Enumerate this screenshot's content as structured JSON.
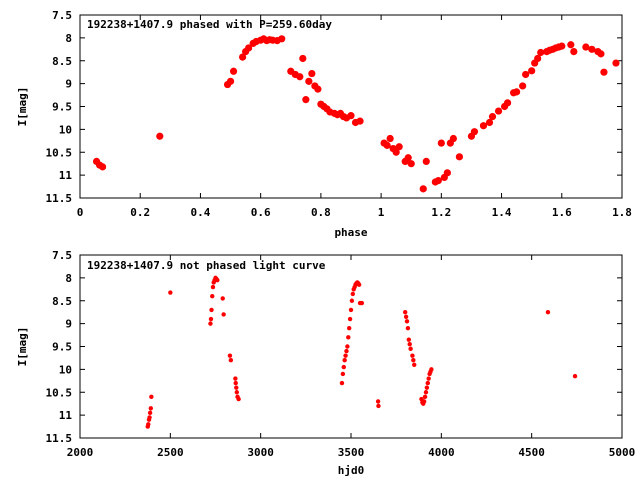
{
  "chart_data": [
    {
      "type": "scatter",
      "title": "192238+1407.9 phased with P=259.60day",
      "xlabel": "phase",
      "ylabel": "I[mag]",
      "xlim": [
        0,
        1.8
      ],
      "ylim": [
        11.5,
        7.5
      ],
      "y_inverted": true,
      "x_ticks": [
        "0",
        "0.2",
        "0.4",
        "0.6",
        "0.8",
        "1",
        "1.2",
        "1.4",
        "1.6",
        "1.8"
      ],
      "y_ticks": [
        "7.5",
        "8",
        "8.5",
        "9",
        "9.5",
        "10",
        "10.5",
        "11",
        "11.5"
      ],
      "color": "#ff0000",
      "series": [
        {
          "x": [
            0.055,
            0.065,
            0.075,
            0.265,
            0.49,
            0.5,
            0.51,
            0.54,
            0.55,
            0.56,
            0.575,
            0.585,
            0.6,
            0.61,
            0.62,
            0.63,
            0.64,
            0.655,
            0.67,
            0.7,
            0.715,
            0.73,
            0.74,
            0.75,
            0.76,
            0.77,
            0.78,
            0.79,
            0.8,
            0.81,
            0.82,
            0.83,
            0.845,
            0.855,
            0.865,
            0.875,
            0.885,
            0.9,
            0.915,
            0.93,
            1.01,
            1.02,
            1.03,
            1.04,
            1.05,
            1.06,
            1.08,
            1.09,
            1.1,
            1.14,
            1.15,
            1.18,
            1.19,
            1.2,
            1.21,
            1.22,
            1.23,
            1.24,
            1.26,
            1.3,
            1.31,
            1.34,
            1.36,
            1.37,
            1.39,
            1.41,
            1.42,
            1.44,
            1.45,
            1.47,
            1.48,
            1.5,
            1.51,
            1.52,
            1.53,
            1.55,
            1.56,
            1.57,
            1.58,
            1.59,
            1.6,
            1.63,
            1.64,
            1.68,
            1.7,
            1.72,
            1.73,
            1.74,
            1.78
          ],
          "y": [
            10.7,
            10.78,
            10.82,
            10.15,
            9.02,
            8.95,
            8.73,
            8.42,
            8.3,
            8.22,
            8.12,
            8.08,
            8.05,
            8.02,
            8.06,
            8.04,
            8.05,
            8.06,
            8.02,
            8.73,
            8.8,
            8.85,
            8.45,
            9.35,
            8.95,
            8.78,
            9.05,
            9.12,
            9.45,
            9.5,
            9.55,
            9.62,
            9.65,
            9.68,
            9.65,
            9.72,
            9.75,
            9.7,
            9.85,
            9.82,
            10.3,
            10.35,
            10.2,
            10.42,
            10.5,
            10.38,
            10.7,
            10.62,
            10.75,
            11.3,
            10.7,
            11.15,
            11.12,
            10.3,
            11.05,
            10.95,
            10.3,
            10.2,
            10.6,
            10.15,
            10.05,
            9.92,
            9.85,
            9.72,
            9.6,
            9.5,
            9.42,
            9.2,
            9.18,
            9.05,
            8.8,
            8.72,
            8.55,
            8.45,
            8.32,
            8.3,
            8.27,
            8.25,
            8.22,
            8.2,
            8.18,
            8.15,
            8.3,
            8.2,
            8.25,
            8.3,
            8.35,
            8.75,
            8.55
          ]
        }
      ]
    },
    {
      "type": "scatter",
      "title": "192238+1407.9 not phased light curve",
      "xlabel": "hjd0",
      "ylabel": "I[mag]",
      "xlim": [
        2000,
        5000
      ],
      "ylim": [
        11.5,
        7.5
      ],
      "y_inverted": true,
      "x_ticks": [
        "2000",
        "2500",
        "3000",
        "3500",
        "4000",
        "4500",
        "5000"
      ],
      "y_ticks": [
        "7.5",
        "8",
        "8.5",
        "9",
        "9.5",
        "10",
        "10.5",
        "11",
        "11.5"
      ],
      "color": "#ff0000",
      "series": [
        {
          "x": [
            2375,
            2378,
            2382,
            2385,
            2388,
            2392,
            2395,
            2500,
            2722,
            2725,
            2728,
            2732,
            2736,
            2740,
            2745,
            2750,
            2755,
            2760,
            2790,
            2795,
            2830,
            2835,
            2860,
            2862,
            2865,
            2868,
            2872,
            2878,
            3450,
            3455,
            3460,
            3465,
            3470,
            3475,
            3480,
            3485,
            3490,
            3495,
            3500,
            3505,
            3510,
            3515,
            3520,
            3525,
            3530,
            3535,
            3540,
            3545,
            3550,
            3560,
            3650,
            3652,
            3800,
            3805,
            3810,
            3815,
            3820,
            3825,
            3830,
            3840,
            3845,
            3850,
            3890,
            3895,
            3900,
            3905,
            3910,
            3915,
            3920,
            3925,
            3930,
            3935,
            3940,
            3945,
            4590,
            4740
          ],
          "y": [
            11.25,
            11.2,
            11.1,
            11.05,
            10.95,
            10.85,
            10.6,
            8.32,
            9.0,
            8.9,
            8.7,
            8.4,
            8.2,
            8.1,
            8.05,
            8.0,
            8.02,
            8.05,
            8.45,
            8.8,
            9.7,
            9.8,
            10.2,
            10.3,
            10.4,
            10.5,
            10.6,
            10.65,
            10.3,
            10.1,
            9.95,
            9.8,
            9.7,
            9.6,
            9.5,
            9.3,
            9.1,
            8.9,
            8.7,
            8.5,
            8.35,
            8.25,
            8.2,
            8.15,
            8.12,
            8.1,
            8.12,
            8.15,
            8.55,
            8.55,
            10.7,
            10.8,
            8.75,
            8.85,
            8.95,
            9.1,
            9.35,
            9.45,
            9.55,
            9.7,
            9.8,
            9.9,
            10.65,
            10.72,
            10.75,
            10.7,
            10.6,
            10.5,
            10.4,
            10.3,
            10.2,
            10.1,
            10.05,
            10.0,
            8.75,
            10.15
          ]
        }
      ]
    }
  ]
}
